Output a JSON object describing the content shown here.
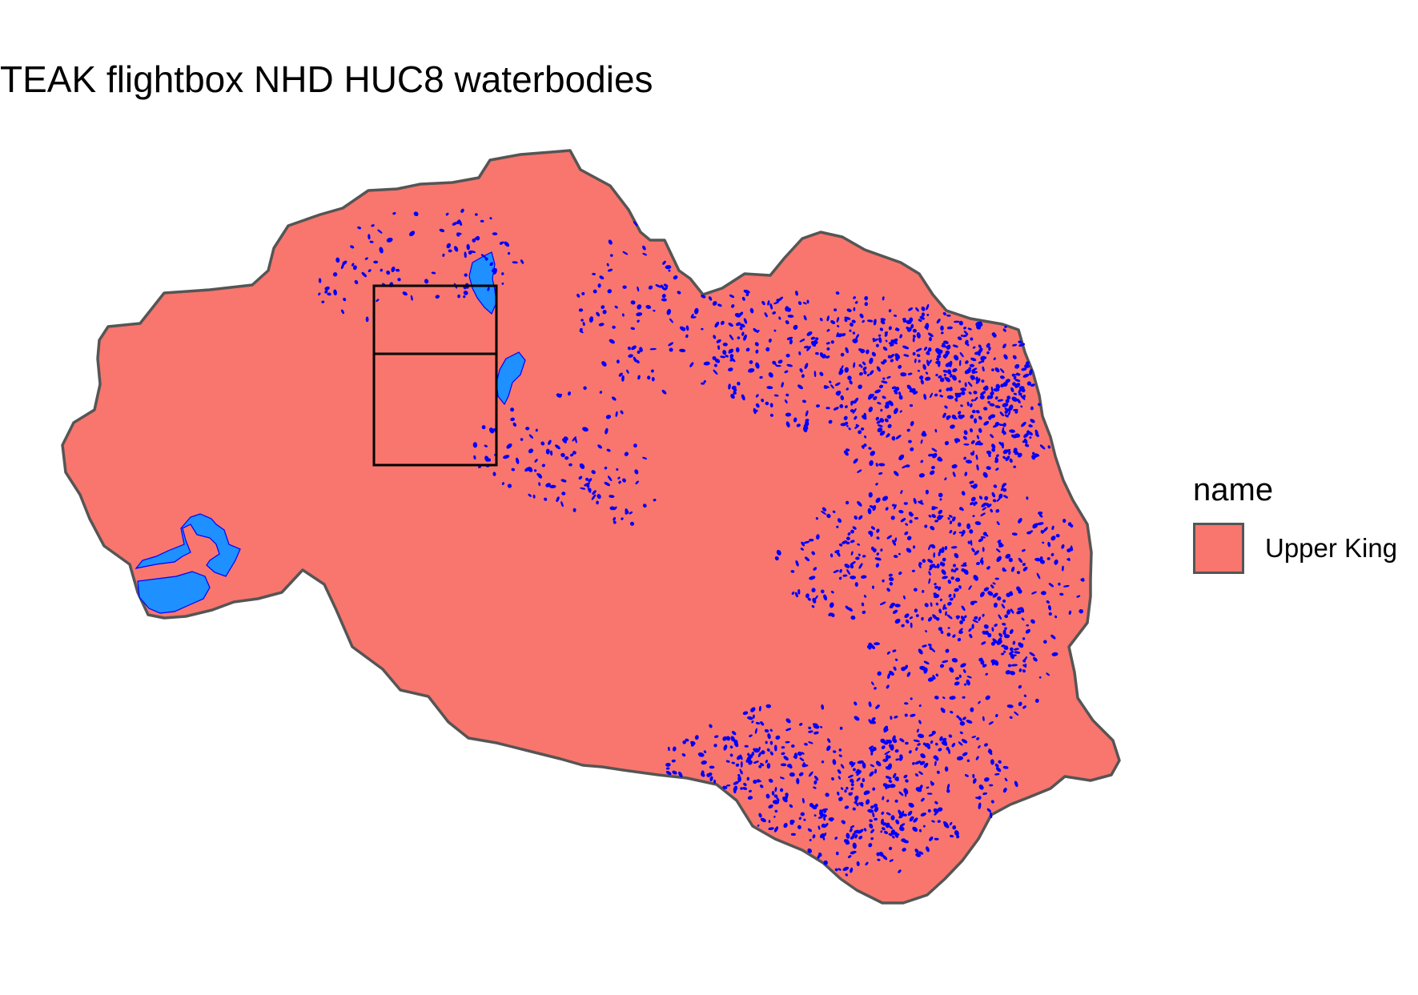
{
  "title": "TEAK flightbox NHD HUC8 waterbodies",
  "legend": {
    "title": "name",
    "items": [
      {
        "label": "Upper King",
        "fill": "#F8766D",
        "stroke": "#555555"
      }
    ]
  },
  "colors": {
    "watershed_fill": "#F8766D",
    "watershed_border": "#555555",
    "large_lakes": "#1E90FF",
    "small_waterbodies": "#0000FF",
    "flightbox_border": "#000000"
  }
}
